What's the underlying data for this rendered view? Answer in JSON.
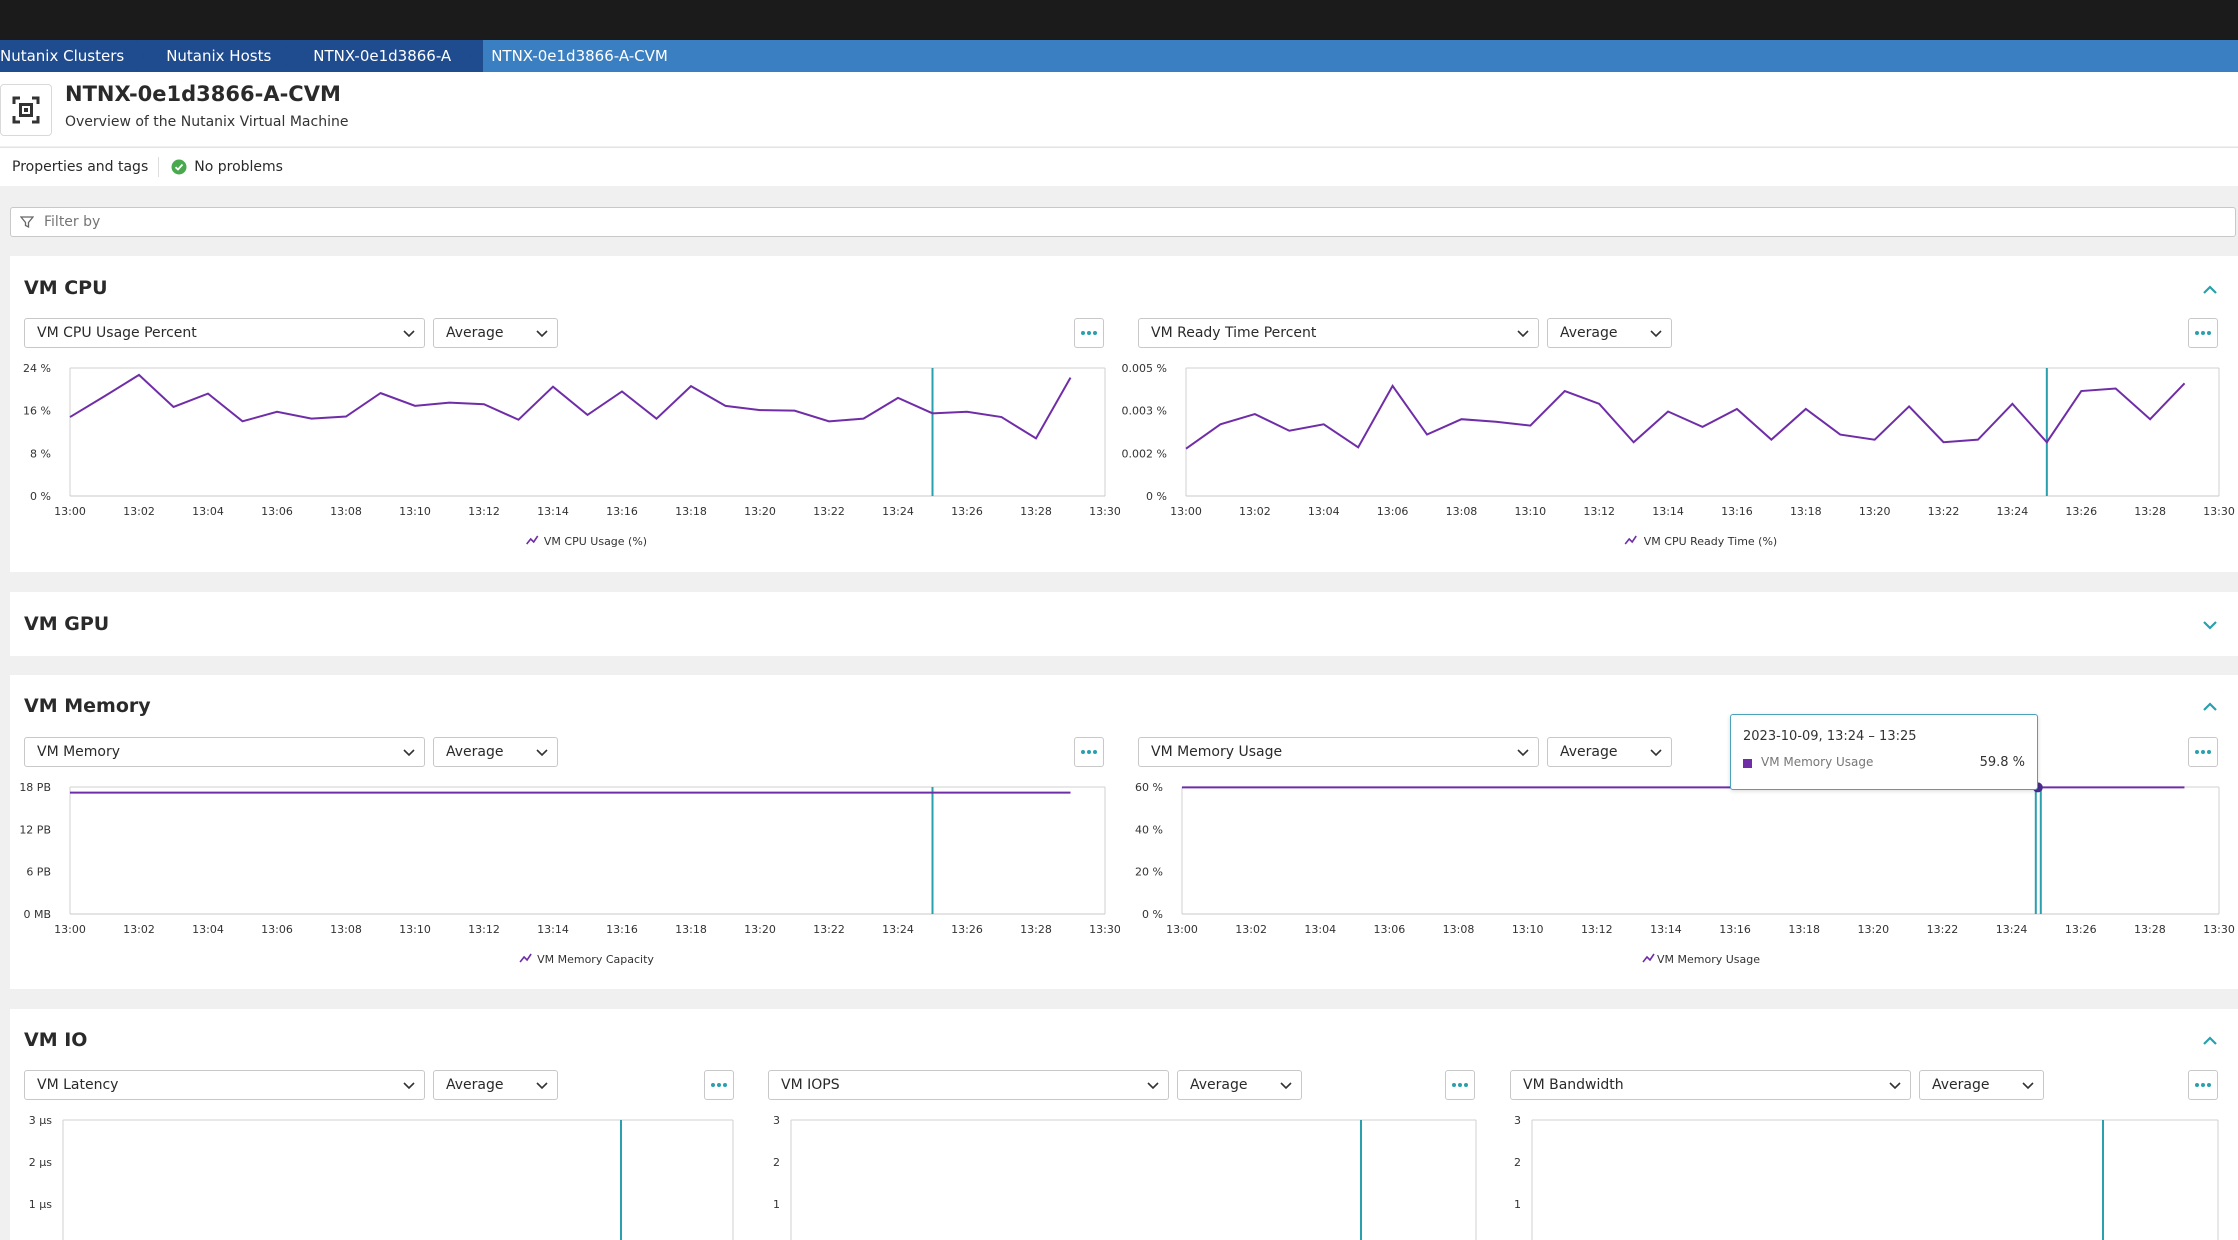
{
  "breadcrumbs": [
    "Nutanix Clusters",
    "Nutanix Hosts",
    "NTNX-0e1d3866-A",
    "NTNX-0e1d3866-A-CVM"
  ],
  "header": {
    "title": "NTNX-0e1d3866-A-CVM",
    "subtitle": "Overview of the Nutanix Virtual Machine",
    "icon": "vm-icon"
  },
  "subbar": {
    "properties": "Properties and tags",
    "problems": "No problems"
  },
  "filter": {
    "placeholder": "Filter by"
  },
  "sections": {
    "cpu": {
      "title": "VM CPU"
    },
    "gpu": {
      "title": "VM GPU"
    },
    "memory": {
      "title": "VM Memory"
    },
    "io": {
      "title": "VM IO"
    }
  },
  "selectors": {
    "cpu_left": "VM CPU Usage Percent",
    "cpu_right": "VM Ready Time Percent",
    "mem_left": "VM Memory",
    "mem_right": "VM Memory Usage",
    "io_1": "VM Latency",
    "io_2": "VM IOPS",
    "io_3": "VM Bandwidth",
    "aggregation": "Average"
  },
  "tooltip": {
    "time": "2023-10-09, 13:24 – 13:25",
    "series": "VM Memory Usage",
    "value": "59.8 %"
  },
  "colors": {
    "series": "#6f2da8",
    "cursor": "#2a9fae",
    "accent": "#2a9fae",
    "crumb_dark": "#1f4b8f",
    "crumb_light": "#3a7fc1"
  },
  "chart_data": [
    {
      "type": "line",
      "x": [
        "13:00",
        "13:01",
        "13:02",
        "13:03",
        "13:04",
        "13:05",
        "13:06",
        "13:07",
        "13:08",
        "13:09",
        "13:10",
        "13:11",
        "13:12",
        "13:13",
        "13:14",
        "13:15",
        "13:16",
        "13:17",
        "13:18",
        "13:19",
        "13:20",
        "13:21",
        "13:22",
        "13:23",
        "13:24",
        "13:25",
        "13:26",
        "13:27",
        "13:28",
        "13:29"
      ],
      "xticks": [
        "13:00",
        "13:02",
        "13:04",
        "13:06",
        "13:08",
        "13:10",
        "13:12",
        "13:14",
        "13:16",
        "13:18",
        "13:20",
        "13:22",
        "13:24",
        "13:26",
        "13:28",
        "13:30"
      ],
      "yticks": [
        "0 %",
        "8 %",
        "16 %",
        "24 %"
      ],
      "ylim": [
        0,
        24
      ],
      "series": [
        {
          "name": "VM CPU Usage (%)",
          "values": [
            14.8,
            18.7,
            22.7,
            16.7,
            19.2,
            14,
            15.8,
            14.5,
            14.9,
            19.3,
            16.9,
            17.5,
            17.2,
            14.3,
            20.5,
            15.2,
            19.6,
            14.5,
            20.6,
            16.9,
            16.1,
            16,
            14,
            14.5,
            18.4,
            15.5,
            15.8,
            14.8,
            10.8,
            22.2
          ]
        }
      ]
    },
    {
      "type": "line",
      "x": [
        "13:00",
        "13:01",
        "13:02",
        "13:03",
        "13:04",
        "13:05",
        "13:06",
        "13:07",
        "13:08",
        "13:09",
        "13:10",
        "13:11",
        "13:12",
        "13:13",
        "13:14",
        "13:15",
        "13:16",
        "13:17",
        "13:18",
        "13:19",
        "13:20",
        "13:21",
        "13:22",
        "13:23",
        "13:24",
        "13:25",
        "13:26",
        "13:27",
        "13:28",
        "13:29"
      ],
      "xticks": [
        "13:00",
        "13:02",
        "13:04",
        "13:06",
        "13:08",
        "13:10",
        "13:12",
        "13:14",
        "13:16",
        "13:18",
        "13:20",
        "13:22",
        "13:24",
        "13:26",
        "13:28",
        "13:30"
      ],
      "yticks": [
        "0 %",
        "0.002 %",
        "0.003 %",
        "0.005 %"
      ],
      "ylim": [
        0,
        0.005
      ],
      "series": [
        {
          "name": "VM CPU Ready Time (%)",
          "values": [
            0.00185,
            0.0028,
            0.0032,
            0.00255,
            0.0028,
            0.0019,
            0.0043,
            0.0024,
            0.003,
            0.0029,
            0.00275,
            0.0041,
            0.0036,
            0.0021,
            0.0033,
            0.0027,
            0.0034,
            0.0022,
            0.0034,
            0.0024,
            0.0022,
            0.0035,
            0.0021,
            0.0022,
            0.0036,
            0.0021,
            0.0041,
            0.0042,
            0.003,
            0.0044
          ]
        }
      ]
    },
    {
      "type": "line",
      "x": [
        "13:00",
        "13:29"
      ],
      "xticks": [
        "13:00",
        "13:02",
        "13:04",
        "13:06",
        "13:08",
        "13:10",
        "13:12",
        "13:14",
        "13:16",
        "13:18",
        "13:20",
        "13:22",
        "13:24",
        "13:26",
        "13:28",
        "13:30"
      ],
      "yticks": [
        "0 MB",
        "6 PB",
        "12 PB",
        "18 PB"
      ],
      "ylim": [
        0,
        18
      ],
      "series": [
        {
          "name": "VM Memory Capacity",
          "values": [
            17.2,
            17.2
          ]
        }
      ]
    },
    {
      "type": "line",
      "x": [
        "13:00",
        "13:29"
      ],
      "xticks": [
        "13:00",
        "13:02",
        "13:04",
        "13:06",
        "13:08",
        "13:10",
        "13:12",
        "13:14",
        "13:16",
        "13:18",
        "13:20",
        "13:22",
        "13:24",
        "13:26",
        "13:28",
        "13:30"
      ],
      "yticks": [
        "0 %",
        "20 %",
        "40 %",
        "60 %"
      ],
      "ylim": [
        0,
        60
      ],
      "series": [
        {
          "name": "VM Memory Usage",
          "values": [
            59.8,
            59.8
          ]
        }
      ]
    },
    {
      "type": "line",
      "yticks": [
        "1 µs",
        "2 µs",
        "3 µs"
      ],
      "ylim": [
        0,
        3
      ],
      "series": []
    },
    {
      "type": "line",
      "yticks": [
        "1",
        "2",
        "3"
      ],
      "ylim": [
        0,
        3
      ],
      "series": []
    },
    {
      "type": "line",
      "yticks": [
        "1",
        "2",
        "3"
      ],
      "ylim": [
        0,
        3
      ],
      "series": []
    }
  ]
}
